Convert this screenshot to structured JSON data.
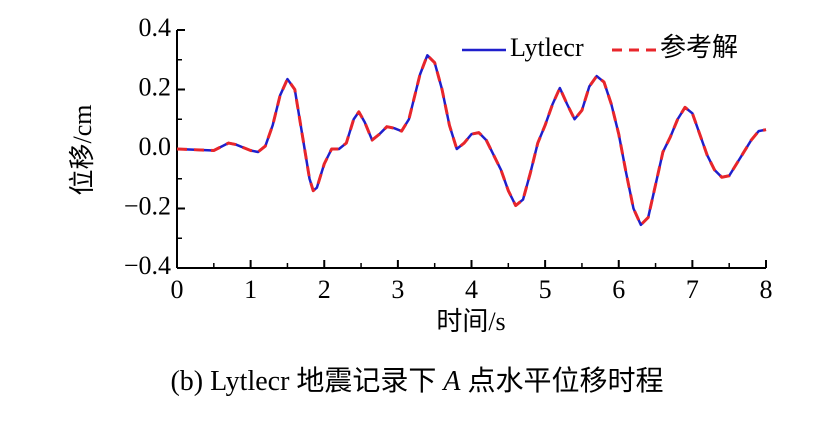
{
  "chart_data": {
    "type": "line",
    "xlabel": "时间/s",
    "ylabel": "位移/cm",
    "caption": [
      "(b) Lytlecr 地震记录下 ",
      "A",
      " 点水平位移时程"
    ],
    "x": [
      0,
      0.5,
      0.7,
      0.8,
      1.0,
      1.1,
      1.2,
      1.3,
      1.4,
      1.5,
      1.6,
      1.7,
      1.8,
      1.85,
      1.9,
      2.0,
      2.1,
      2.2,
      2.3,
      2.4,
      2.47,
      2.55,
      2.65,
      2.75,
      2.85,
      2.95,
      3.05,
      3.15,
      3.3,
      3.4,
      3.5,
      3.6,
      3.7,
      3.8,
      3.9,
      4.0,
      4.1,
      4.2,
      4.3,
      4.4,
      4.5,
      4.6,
      4.7,
      4.8,
      4.9,
      5.0,
      5.1,
      5.2,
      5.3,
      5.4,
      5.5,
      5.6,
      5.7,
      5.8,
      5.9,
      6.0,
      6.1,
      6.2,
      6.3,
      6.4,
      6.5,
      6.6,
      6.7,
      6.8,
      6.9,
      7.0,
      7.1,
      7.2,
      7.3,
      7.4,
      7.5,
      7.6,
      7.7,
      7.8,
      7.9,
      8.0
    ],
    "series": [
      {
        "name": "Lytlecr",
        "color": "#1f1fcc",
        "dashed": false,
        "values": [
          0,
          -0.005,
          0.02,
          0.015,
          -0.005,
          -0.01,
          0.01,
          0.08,
          0.18,
          0.235,
          0.2,
          0.05,
          -0.1,
          -0.14,
          -0.13,
          -0.05,
          0.0,
          0.0,
          0.02,
          0.1,
          0.125,
          0.09,
          0.03,
          0.05,
          0.075,
          0.07,
          0.06,
          0.1,
          0.25,
          0.315,
          0.29,
          0.2,
          0.08,
          0.0,
          0.02,
          0.05,
          0.055,
          0.03,
          -0.02,
          -0.07,
          -0.14,
          -0.19,
          -0.17,
          -0.08,
          0.02,
          0.08,
          0.15,
          0.205,
          0.15,
          0.1,
          0.13,
          0.21,
          0.245,
          0.225,
          0.15,
          0.05,
          -0.08,
          -0.2,
          -0.255,
          -0.23,
          -0.12,
          -0.01,
          0.04,
          0.1,
          0.14,
          0.12,
          0.05,
          -0.02,
          -0.07,
          -0.095,
          -0.09,
          -0.05,
          -0.01,
          0.03,
          0.06,
          0.065
        ]
      },
      {
        "name": "参考解",
        "color": "#e8262b",
        "dashed": true,
        "values": [
          0,
          -0.005,
          0.02,
          0.015,
          -0.005,
          -0.01,
          0.01,
          0.08,
          0.18,
          0.235,
          0.2,
          0.05,
          -0.1,
          -0.14,
          -0.13,
          -0.05,
          0.0,
          0.0,
          0.02,
          0.1,
          0.125,
          0.09,
          0.03,
          0.05,
          0.075,
          0.07,
          0.06,
          0.1,
          0.25,
          0.315,
          0.29,
          0.2,
          0.08,
          0.0,
          0.02,
          0.05,
          0.055,
          0.03,
          -0.02,
          -0.07,
          -0.14,
          -0.19,
          -0.17,
          -0.08,
          0.02,
          0.08,
          0.15,
          0.205,
          0.15,
          0.1,
          0.13,
          0.21,
          0.245,
          0.225,
          0.15,
          0.05,
          -0.08,
          -0.2,
          -0.255,
          -0.23,
          -0.12,
          -0.01,
          0.04,
          0.1,
          0.14,
          0.12,
          0.05,
          -0.02,
          -0.07,
          -0.095,
          -0.09,
          -0.05,
          -0.01,
          0.03,
          0.06,
          0.065
        ]
      }
    ],
    "xlim": [
      0,
      8
    ],
    "ylim": [
      -0.4,
      0.4
    ],
    "xticks": [
      0,
      1,
      2,
      3,
      4,
      5,
      6,
      7,
      8
    ],
    "yticks": [
      {
        "value": -0.4,
        "label": "−0.4"
      },
      {
        "value": -0.2,
        "label": "−0.2"
      },
      {
        "value": 0,
        "label": "0.0"
      },
      0.2,
      0.4
    ],
    "legend": "upper right"
  }
}
